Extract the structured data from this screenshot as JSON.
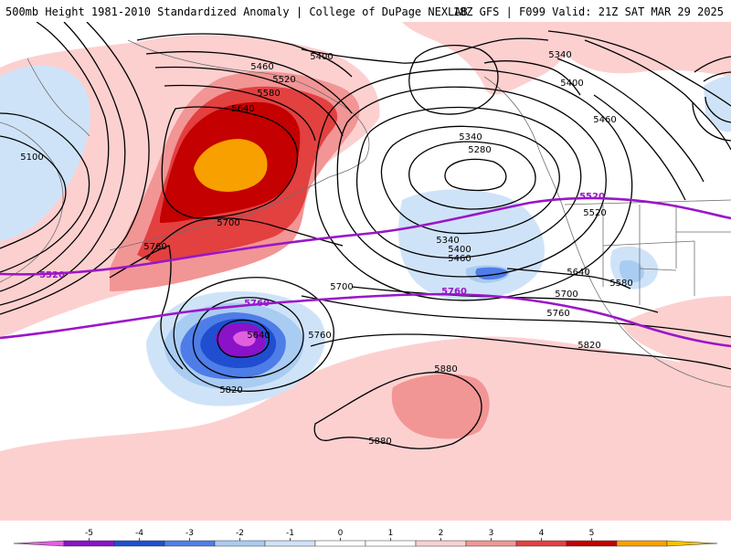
{
  "header": {
    "left_title": "500mb Height 1981-2010 Standardized Anomaly | College of DuPage NEXLAB",
    "right_title": "18Z GFS | F099 Valid: 21Z SAT MAR 29 2025"
  },
  "colors": {
    "anom_pos_1": "#fdd0d0",
    "anom_pos_2": "#f29595",
    "anom_pos_3": "#e34040",
    "anom_pos_4": "#c40000",
    "anom_pos_5": "#f7a000",
    "anom_neg_1": "#cfe3f8",
    "anom_neg_2": "#a9ccf2",
    "anom_neg_3": "#4f7de8",
    "anom_neg_4": "#1f4fd0",
    "anom_neg_5": "#8a12c8",
    "anom_neg_6": "#e060e0",
    "height_contour": "#000000",
    "highlight_contour": "#9a16c8",
    "coastline": "#6e6e6e"
  },
  "height_labels": [
    {
      "text": "5400"
    },
    {
      "text": "5460"
    },
    {
      "text": "5520"
    },
    {
      "text": "5580"
    },
    {
      "text": "5640"
    },
    {
      "text": "5100"
    },
    {
      "text": "5700"
    },
    {
      "text": "5760"
    },
    {
      "text": "5340"
    },
    {
      "text": "5280"
    },
    {
      "text": "5340"
    },
    {
      "text": "5400"
    },
    {
      "text": "5460"
    },
    {
      "text": "5640"
    },
    {
      "text": "5700"
    },
    {
      "text": "5640"
    },
    {
      "text": "5760"
    },
    {
      "text": "5700"
    },
    {
      "text": "5760"
    },
    {
      "text": "5820"
    },
    {
      "text": "5820"
    },
    {
      "text": "5880"
    },
    {
      "text": "5880"
    },
    {
      "text": "5340"
    },
    {
      "text": "5400"
    },
    {
      "text": "5460"
    },
    {
      "text": "5520"
    },
    {
      "text": "5580"
    }
  ],
  "highlight_labels": [
    {
      "text": "5520"
    },
    {
      "text": "5760"
    },
    {
      "text": "5760"
    },
    {
      "text": "5520"
    }
  ],
  "legend": {
    "ticks": [
      "-5",
      "-4",
      "-3",
      "-2",
      "-1",
      "0",
      "1",
      "2",
      "3",
      "4",
      "5"
    ],
    "bins": [
      {
        "color": "#e060e0"
      },
      {
        "color": "#8a12c8"
      },
      {
        "color": "#1f4fd0"
      },
      {
        "color": "#4f7de8"
      },
      {
        "color": "#a9ccf2"
      },
      {
        "color": "#cfe3f8"
      },
      {
        "color": "#ffffff"
      },
      {
        "color": "#ffffff"
      },
      {
        "color": "#fdd0d0"
      },
      {
        "color": "#f29595"
      },
      {
        "color": "#e34040"
      },
      {
        "color": "#c40000"
      },
      {
        "color": "#f7a000"
      },
      {
        "color": "#f5c200"
      }
    ]
  }
}
